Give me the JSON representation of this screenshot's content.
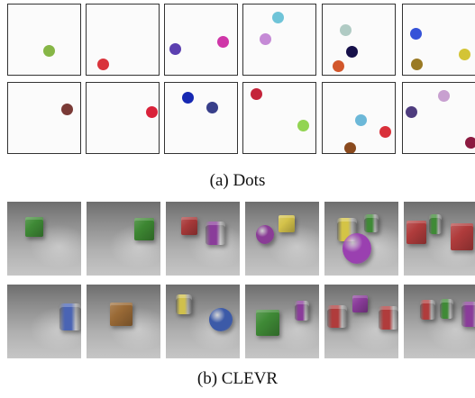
{
  "captions": {
    "dots": "(a) Dots",
    "clevr": "(b) CLEVR"
  },
  "dots_panels": [
    {
      "dots": [
        {
          "color": "#86b646"
        }
      ]
    },
    {
      "dots": [
        {
          "color": "#d9343b"
        }
      ]
    },
    {
      "dots": [
        {
          "color": "#5b3fb0"
        },
        {
          "color": "#cf36a8"
        }
      ]
    },
    {
      "dots": [
        {
          "color": "#6fc4d8"
        },
        {
          "color": "#c58ad6"
        }
      ]
    },
    {
      "dots": [
        {
          "color": "#b0cbc4"
        },
        {
          "color": "#16104a"
        },
        {
          "color": "#d2572b"
        }
      ]
    },
    {
      "dots": [
        {
          "color": "#3552d8"
        },
        {
          "color": "#9a7a24"
        },
        {
          "color": "#d3c436"
        }
      ]
    },
    {
      "dots": [
        {
          "color": "#7a3a36"
        }
      ]
    },
    {
      "dots": [
        {
          "color": "#d9223a"
        }
      ]
    },
    {
      "dots": [
        {
          "color": "#1628b2"
        },
        {
          "color": "#383f8a"
        }
      ]
    },
    {
      "dots": [
        {
          "color": "#c4243a"
        },
        {
          "color": "#92d452"
        }
      ]
    },
    {
      "dots": [
        {
          "color": "#6cb8d8"
        },
        {
          "color": "#d9303a"
        },
        {
          "color": "#8a4a1e"
        }
      ]
    },
    {
      "dots": [
        {
          "color": "#c8a0d0"
        },
        {
          "color": "#4e3c7e"
        },
        {
          "color": "#8c1a40"
        }
      ]
    }
  ],
  "clevr_panels": [
    {
      "objects": [
        {
          "shape": "cube",
          "color": "#3f8a36"
        }
      ]
    },
    {
      "objects": [
        {
          "shape": "cube",
          "color": "#3d8732"
        }
      ]
    },
    {
      "objects": [
        {
          "shape": "cube",
          "color": "#a83a3a"
        },
        {
          "shape": "cylinder",
          "color": "#8a3c9a"
        }
      ]
    },
    {
      "objects": [
        {
          "shape": "sphere",
          "color": "#8a3c96"
        },
        {
          "shape": "cube",
          "color": "#d4c24a"
        }
      ]
    },
    {
      "objects": [
        {
          "shape": "cylinder",
          "color": "#d4c446"
        },
        {
          "shape": "cylinder",
          "color": "#3f8a36"
        },
        {
          "shape": "sphere",
          "color": "#9a40b0"
        }
      ]
    },
    {
      "objects": [
        {
          "shape": "cube",
          "color": "#b03c3c"
        },
        {
          "shape": "cylinder",
          "color": "#3f8a36"
        },
        {
          "shape": "cube",
          "color": "#b03c3c"
        }
      ]
    },
    {
      "objects": [
        {
          "shape": "cylinder",
          "color": "#4a64b4"
        }
      ]
    },
    {
      "objects": [
        {
          "shape": "cube",
          "color": "#9a6a36"
        }
      ]
    },
    {
      "objects": [
        {
          "shape": "cylinder",
          "color": "#d0c04c"
        },
        {
          "shape": "sphere",
          "color": "#3c5aa8"
        }
      ]
    },
    {
      "objects": [
        {
          "shape": "cube",
          "color": "#3f8a36"
        },
        {
          "shape": "cylinder",
          "color": "#8a3c9a"
        }
      ]
    },
    {
      "objects": [
        {
          "shape": "cylinder",
          "color": "#b03c3c"
        },
        {
          "shape": "cube",
          "color": "#8a3c9a"
        },
        {
          "shape": "cylinder",
          "color": "#b03c3c"
        }
      ]
    },
    {
      "objects": [
        {
          "shape": "cylinder",
          "color": "#b03c3c"
        },
        {
          "shape": "cylinder",
          "color": "#3f8a36"
        },
        {
          "shape": "cylinder",
          "color": "#8a3c9a"
        }
      ]
    }
  ]
}
